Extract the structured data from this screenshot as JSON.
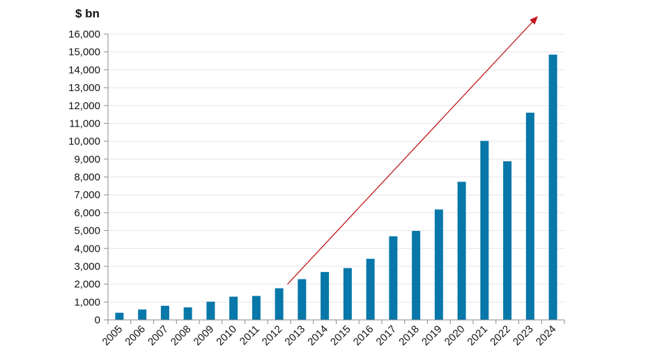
{
  "chart_data": {
    "type": "bar",
    "title": "",
    "unit_label": "$ bn",
    "xlabel": "",
    "ylabel": "",
    "ylim": [
      0,
      16000
    ],
    "yticks": [
      0,
      1000,
      2000,
      3000,
      4000,
      5000,
      6000,
      7000,
      8000,
      9000,
      10000,
      11000,
      12000,
      13000,
      14000,
      15000,
      16000
    ],
    "ytick_labels": [
      "0",
      "1,000",
      "2,000",
      "3,000",
      "4,000",
      "5,000",
      "6,000",
      "7,000",
      "8,000",
      "9,000",
      "10,000",
      "11,000",
      "12,000",
      "13,000",
      "14,000",
      "15,000",
      "16,000"
    ],
    "categories": [
      "2005",
      "2006",
      "2007",
      "2008",
      "2009",
      "2010",
      "2011",
      "2012",
      "2013",
      "2014",
      "2015",
      "2016",
      "2017",
      "2018",
      "2019",
      "2020",
      "2021",
      "2022",
      "2023",
      "2024"
    ],
    "values": [
      400,
      580,
      790,
      700,
      1020,
      1300,
      1340,
      1770,
      2280,
      2680,
      2900,
      3420,
      4680,
      4980,
      6180,
      7730,
      10020,
      8880,
      11600,
      14850
    ],
    "grid": true,
    "legend": "none",
    "bar_color": "#0877a9",
    "trend_arrow": {
      "start": {
        "category": "2012",
        "value": 2000
      },
      "end": {
        "category": "2024",
        "value": 16950
      },
      "color": "#c0161c"
    }
  }
}
